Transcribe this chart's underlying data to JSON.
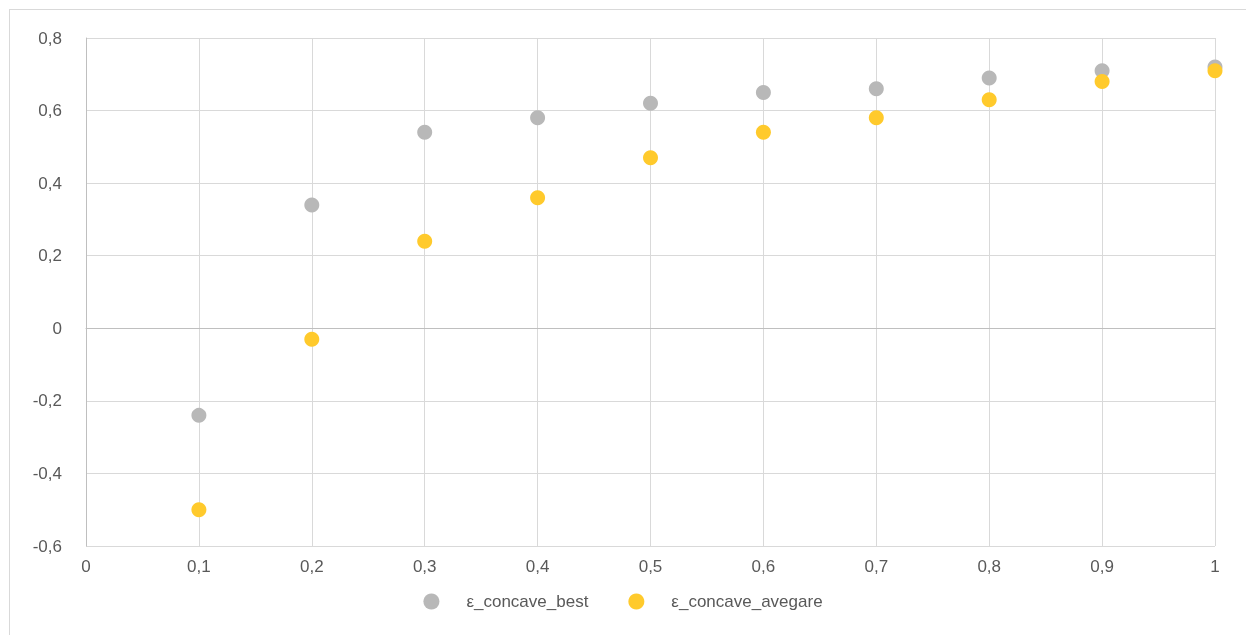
{
  "chart_data": {
    "type": "scatter",
    "x": [
      0.1,
      0.2,
      0.3,
      0.4,
      0.5,
      0.6,
      0.7,
      0.8,
      0.9,
      1
    ],
    "series": [
      {
        "name": "ε_concave_best",
        "color": "#b8b8b8",
        "values": [
          -0.24,
          0.34,
          0.54,
          0.58,
          0.62,
          0.65,
          0.66,
          0.69,
          0.71,
          0.72
        ]
      },
      {
        "name": "ε_concave_avegare",
        "color": "#ffca2c",
        "values": [
          -0.5,
          -0.03,
          0.24,
          0.36,
          0.47,
          0.54,
          0.58,
          0.63,
          0.68,
          0.71
        ]
      }
    ],
    "xlim": [
      0,
      1
    ],
    "xticks": [
      0,
      {
        "value": 0.1,
        "label": "0,1"
      },
      {
        "value": 0.2,
        "label": "0,2"
      },
      {
        "value": 0.3,
        "label": "0,3"
      },
      {
        "value": 0.4,
        "label": "0,4"
      },
      {
        "value": 0.5,
        "label": "0,5"
      },
      {
        "value": 0.6,
        "label": "0,6"
      },
      {
        "value": 0.7,
        "label": "0,7"
      },
      {
        "value": 0.8,
        "label": "0,8"
      },
      {
        "value": 0.9,
        "label": "0,9"
      },
      1
    ],
    "ylim": [
      -0.6,
      0.8
    ],
    "yticks": [
      {
        "value": -0.6,
        "label": "-0,6"
      },
      {
        "value": -0.4,
        "label": "-0,4"
      },
      {
        "value": -0.2,
        "label": "-0,2"
      },
      0,
      {
        "value": 0.2,
        "label": "0,2"
      },
      {
        "value": 0.4,
        "label": "0,4"
      },
      {
        "value": 0.6,
        "label": "0,6"
      },
      {
        "value": 0.8,
        "label": "0,8"
      }
    ],
    "grid": true,
    "legend": "bottom",
    "marker": "circle"
  }
}
